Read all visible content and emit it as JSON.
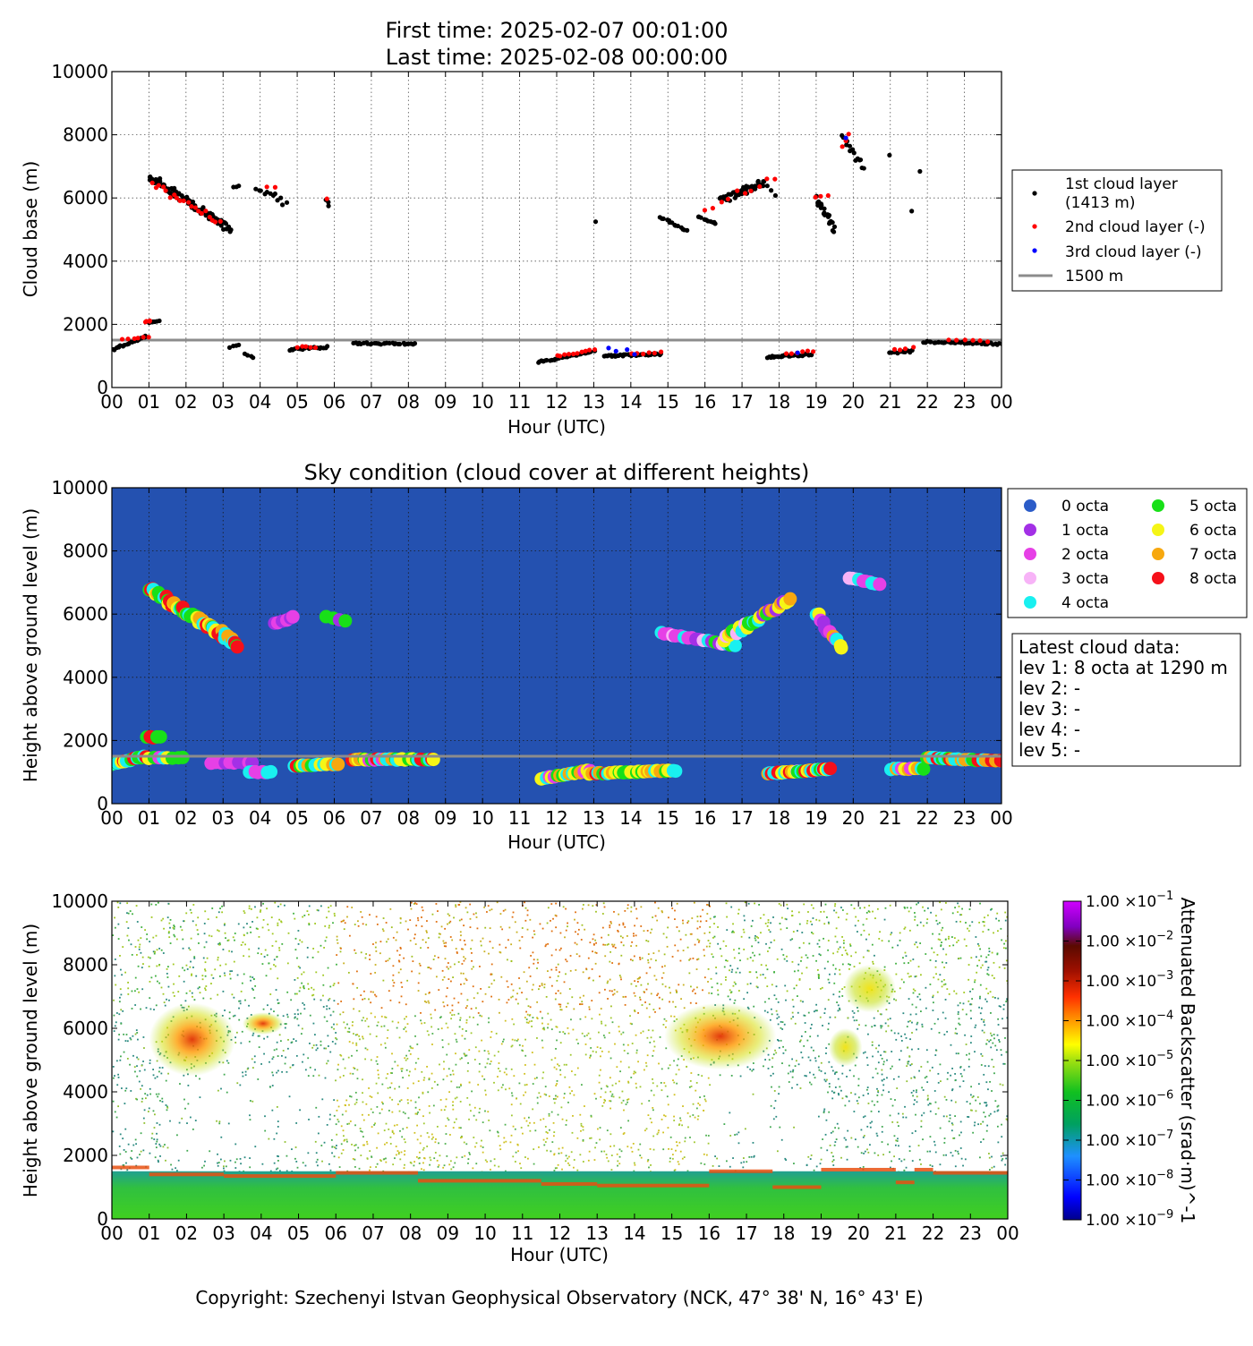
{
  "header": {
    "first_time": "First time: 2025-02-07 00:01:00",
    "last_time": "Last time: 2025-02-08 00:00:00"
  },
  "hours": [
    "00",
    "01",
    "02",
    "03",
    "04",
    "05",
    "06",
    "07",
    "08",
    "09",
    "10",
    "11",
    "12",
    "13",
    "14",
    "15",
    "16",
    "17",
    "18",
    "19",
    "20",
    "21",
    "22",
    "23",
    "00"
  ],
  "yticks": [
    "0",
    "2000",
    "4000",
    "6000",
    "8000",
    "10000"
  ],
  "copyright": "Copyright: Szechenyi Istvan Geophysical Observatory (NCK, 47° 38' N, 16° 43' E)",
  "colors": {
    "layer1": "#000000",
    "layer2": "#ff0000",
    "layer3": "#0000ff",
    "ref_line": "#8c8c8c",
    "sky_bg": "#2451b0",
    "octa": [
      "#2b5cc8",
      "#a330e6",
      "#e640e6",
      "#f7b3f7",
      "#19f0f0",
      "#18e018",
      "#f5f516",
      "#f7a80f",
      "#f5101a"
    ]
  },
  "chart_data": [
    {
      "type": "scatter",
      "title": "",
      "xlabel": "Hour (UTC)",
      "ylabel": "Cloud base (m)",
      "xlim": [
        0,
        24
      ],
      "ylim": [
        0,
        10000
      ],
      "grid": true,
      "legend_position": "right-outside",
      "ref_line": {
        "y": 1500,
        "label": "1500 m"
      },
      "series": [
        {
          "name": "1st cloud layer",
          "name_line2": "(1413 m)",
          "clusters": [
            {
              "x": [
                0.0,
                0.9
              ],
              "y": [
                1200,
                1620
              ],
              "n": 24
            },
            {
              "x": [
                1.0,
                1.3
              ],
              "y": [
                2050,
                2100
              ],
              "n": 6
            },
            {
              "x": [
                1.0,
                3.2
              ],
              "y": [
                6700,
                5000
              ],
              "n": 90
            },
            {
              "x": [
                3.3,
                3.4
              ],
              "y": [
                6350,
                6400
              ],
              "n": 3
            },
            {
              "x": [
                3.2,
                3.45
              ],
              "y": [
                1280,
                1320
              ],
              "n": 4
            },
            {
              "x": [
                3.6,
                3.8
              ],
              "y": [
                1050,
                950
              ],
              "n": 4
            },
            {
              "x": [
                3.9,
                4.7
              ],
              "y": [
                6400,
                5850
              ],
              "n": 12
            },
            {
              "x": [
                4.8,
                5.8
              ],
              "y": [
                1200,
                1280
              ],
              "n": 20
            },
            {
              "x": [
                5.8,
                5.85
              ],
              "y": [
                5950,
                5750
              ],
              "n": 3
            },
            {
              "x": [
                6.5,
                8.2
              ],
              "y": [
                1400,
                1380
              ],
              "n": 30
            },
            {
              "x": [
                11.5,
                13.0
              ],
              "y": [
                800,
                1150
              ],
              "n": 30
            },
            {
              "x": [
                13.05,
                13.1
              ],
              "y": [
                5250,
                5250
              ],
              "n": 1
            },
            {
              "x": [
                13.3,
                14.8
              ],
              "y": [
                1000,
                1050
              ],
              "n": 35
            },
            {
              "x": [
                14.8,
                15.5
              ],
              "y": [
                5400,
                4950
              ],
              "n": 14
            },
            {
              "x": [
                15.8,
                16.3
              ],
              "y": [
                5400,
                5200
              ],
              "n": 10
            },
            {
              "x": [
                16.4,
                17.6
              ],
              "y": [
                5900,
                6500
              ],
              "n": 40
            },
            {
              "x": [
                17.6,
                17.9
              ],
              "y": [
                6500,
                6100
              ],
              "n": 4
            },
            {
              "x": [
                17.7,
                18.9
              ],
              "y": [
                970,
                1050
              ],
              "n": 30
            },
            {
              "x": [
                19.0,
                19.5
              ],
              "y": [
                6000,
                5000
              ],
              "n": 22
            },
            {
              "x": [
                19.7,
                20.3
              ],
              "y": [
                7900,
                6950
              ],
              "n": 14
            },
            {
              "x": [
                20.9,
                21.0
              ],
              "y": [
                7350,
                7350
              ],
              "n": 1
            },
            {
              "x": [
                21.0,
                21.6
              ],
              "y": [
                1100,
                1150
              ],
              "n": 14
            },
            {
              "x": [
                21.55,
                21.6
              ],
              "y": [
                5600,
                5600
              ],
              "n": 1
            },
            {
              "x": [
                21.75,
                21.8
              ],
              "y": [
                6850,
                6850
              ],
              "n": 1
            },
            {
              "x": [
                21.9,
                24.0
              ],
              "y": [
                1450,
                1380
              ],
              "n": 40
            }
          ]
        },
        {
          "name": "2nd cloud layer (-)",
          "clusters": [
            {
              "x": [
                0.3,
                1.0
              ],
              "y": [
                1500,
                1600
              ],
              "n": 6
            },
            {
              "x": [
                0.9,
                1.05
              ],
              "y": [
                2080,
                2120
              ],
              "n": 4
            },
            {
              "x": [
                1.1,
                2.9
              ],
              "y": [
                6400,
                5300
              ],
              "n": 20
            },
            {
              "x": [
                4.2,
                4.4
              ],
              "y": [
                6350,
                6350
              ],
              "n": 2
            },
            {
              "x": [
                5.0,
                5.5
              ],
              "y": [
                1280,
                1280
              ],
              "n": 5
            },
            {
              "x": [
                5.75,
                5.8
              ],
              "y": [
                6000,
                6000
              ],
              "n": 1
            },
            {
              "x": [
                12.0,
                13.0
              ],
              "y": [
                1000,
                1200
              ],
              "n": 10
            },
            {
              "x": [
                14.0,
                14.8
              ],
              "y": [
                1050,
                1100
              ],
              "n": 6
            },
            {
              "x": [
                16.0,
                17.9
              ],
              "y": [
                5700,
                6600
              ],
              "n": 10
            },
            {
              "x": [
                18.2,
                18.9
              ],
              "y": [
                1050,
                1150
              ],
              "n": 6
            },
            {
              "x": [
                19.0,
                19.3
              ],
              "y": [
                6000,
                6050
              ],
              "n": 3
            },
            {
              "x": [
                19.7,
                19.9
              ],
              "y": [
                7600,
                8000
              ],
              "n": 3
            },
            {
              "x": [
                21.1,
                21.6
              ],
              "y": [
                1200,
                1250
              ],
              "n": 4
            },
            {
              "x": [
                22.6,
                23.6
              ],
              "y": [
                1500,
                1450
              ],
              "n": 6
            }
          ]
        },
        {
          "name": "3rd cloud layer (-)",
          "points": [
            [
              13.4,
              1250
            ],
            [
              13.6,
              1150
            ],
            [
              13.9,
              1200
            ],
            [
              14.1,
              1050
            ],
            [
              18.5,
              1100
            ],
            [
              19.8,
              7900
            ]
          ]
        }
      ]
    },
    {
      "type": "scatter",
      "title": "Sky condition (cloud cover at different heights)",
      "xlabel": "Hour (UTC)",
      "ylabel": "Height above ground level (m)",
      "xlim": [
        0,
        24
      ],
      "ylim": [
        0,
        10000
      ],
      "grid": true,
      "legend_position": "right-outside",
      "ref_line": {
        "y": 1500
      },
      "legend": [
        "0 octa",
        "1 octa",
        "2 octa",
        "3 octa",
        "4 octa",
        "5 octa",
        "6 octa",
        "7 octa",
        "8 octa"
      ],
      "clusters": [
        {
          "x": [
            0.0,
            0.9
          ],
          "y": [
            1250,
            1500
          ],
          "octa": [
            4,
            5,
            6,
            8
          ],
          "n": 16
        },
        {
          "x": [
            0.95,
            1.3
          ],
          "y": [
            2100,
            2100
          ],
          "octa": [
            5,
            8
          ],
          "n": 5
        },
        {
          "x": [
            1.0,
            1.9
          ],
          "y": [
            1450,
            1450
          ],
          "octa": [
            2,
            4,
            5,
            6
          ],
          "n": 8
        },
        {
          "x": [
            1.0,
            3.4
          ],
          "y": [
            6800,
            5050
          ],
          "octa": [
            4,
            5,
            6,
            7,
            8
          ],
          "n": 60
        },
        {
          "x": [
            2.7,
            3.8
          ],
          "y": [
            1300,
            1300
          ],
          "octa": [
            1,
            2
          ],
          "n": 10
        },
        {
          "x": [
            3.7,
            4.3
          ],
          "y": [
            1000,
            1000
          ],
          "octa": [
            2,
            4
          ],
          "n": 8
        },
        {
          "x": [
            4.4,
            4.9
          ],
          "y": [
            5700,
            5900
          ],
          "octa": [
            1,
            2
          ],
          "n": 6
        },
        {
          "x": [
            4.9,
            6.1
          ],
          "y": [
            1200,
            1250
          ],
          "octa": [
            4,
            5,
            6,
            7,
            8
          ],
          "n": 16
        },
        {
          "x": [
            5.8,
            6.3
          ],
          "y": [
            5900,
            5800
          ],
          "octa": [
            1,
            5,
            6
          ],
          "n": 4
        },
        {
          "x": [
            6.5,
            8.7
          ],
          "y": [
            1400,
            1400
          ],
          "octa": [
            2,
            4,
            5,
            6,
            7,
            8
          ],
          "n": 32
        },
        {
          "x": [
            11.6,
            12.9
          ],
          "y": [
            800,
            1050
          ],
          "octa": [
            2,
            4,
            5,
            6,
            7
          ],
          "n": 20
        },
        {
          "x": [
            12.9,
            15.2
          ],
          "y": [
            950,
            1050
          ],
          "octa": [
            4,
            5,
            6,
            7,
            8
          ],
          "n": 34
        },
        {
          "x": [
            14.8,
            16.8
          ],
          "y": [
            5400,
            5000
          ],
          "octa": [
            1,
            2,
            3,
            4,
            5
          ],
          "n": 20
        },
        {
          "x": [
            16.5,
            18.3
          ],
          "y": [
            5200,
            6500
          ],
          "octa": [
            1,
            3,
            4,
            5,
            6,
            7
          ],
          "n": 30
        },
        {
          "x": [
            17.7,
            19.4
          ],
          "y": [
            950,
            1100
          ],
          "octa": [
            3,
            4,
            5,
            6,
            7,
            8
          ],
          "n": 30
        },
        {
          "x": [
            19.0,
            19.7
          ],
          "y": [
            6000,
            4900
          ],
          "octa": [
            1,
            2,
            4,
            6,
            7
          ],
          "n": 12
        },
        {
          "x": [
            19.9,
            20.7
          ],
          "y": [
            7150,
            6950
          ],
          "octa": [
            2,
            3,
            4
          ],
          "n": 10
        },
        {
          "x": [
            21.0,
            21.9
          ],
          "y": [
            1100,
            1100
          ],
          "octa": [
            2,
            4,
            5,
            6,
            7
          ],
          "n": 12
        },
        {
          "x": [
            22.0,
            24.0
          ],
          "y": [
            1450,
            1350
          ],
          "octa": [
            4,
            5,
            7,
            8
          ],
          "n": 30
        }
      ],
      "latest_cloud_data": {
        "title": "Latest cloud data:",
        "lines": [
          "lev 1: 8 octa at 1290 m",
          "lev 2: -",
          "lev 3: -",
          "lev 4: -",
          "lev 5: -"
        ]
      }
    },
    {
      "type": "heatmap",
      "title": "",
      "xlabel": "Hour (UTC)",
      "ylabel": "Height above ground level (m)",
      "xlim": [
        0,
        24
      ],
      "ylim": [
        0,
        10000
      ],
      "colorbar": {
        "label": "Attenuated Backscatter (srad·m)^-1",
        "scale": "log",
        "range": [
          1e-09,
          0.1
        ],
        "ticks": [
          "1.00 ×10^-1",
          "1.00 ×10^-2",
          "1.00 ×10^-3",
          "1.00 ×10^-4",
          "1.00 ×10^-5",
          "1.00 ×10^-6",
          "1.00 ×10^-7",
          "1.00 ×10^-8",
          "1.00 ×10^-9"
        ],
        "tick_mantissa": "1.00 ×10",
        "tick_exponents": [
          "−1",
          "−2",
          "−3",
          "−4",
          "−5",
          "−6",
          "−7",
          "−8",
          "−9"
        ]
      },
      "features": [
        {
          "kind": "boundary_layer",
          "x": [
            0,
            24
          ],
          "y": [
            0,
            1500
          ]
        },
        {
          "kind": "cloud",
          "x": [
            1.0,
            3.3
          ],
          "y": [
            4500,
            6800
          ]
        },
        {
          "kind": "cloud",
          "x": [
            3.5,
            4.6
          ],
          "y": [
            5800,
            6500
          ]
        },
        {
          "kind": "cloud",
          "x": [
            14.8,
            17.8
          ],
          "y": [
            4700,
            6800
          ]
        },
        {
          "kind": "cloud",
          "x": [
            19.2,
            20.1
          ],
          "y": [
            4800,
            6000
          ]
        },
        {
          "kind": "cloud",
          "x": [
            19.6,
            21.0
          ],
          "y": [
            6500,
            8000
          ]
        },
        {
          "kind": "noise_high",
          "x": [
            6.0,
            16.0
          ],
          "y": [
            2000,
            10000
          ]
        }
      ]
    }
  ]
}
